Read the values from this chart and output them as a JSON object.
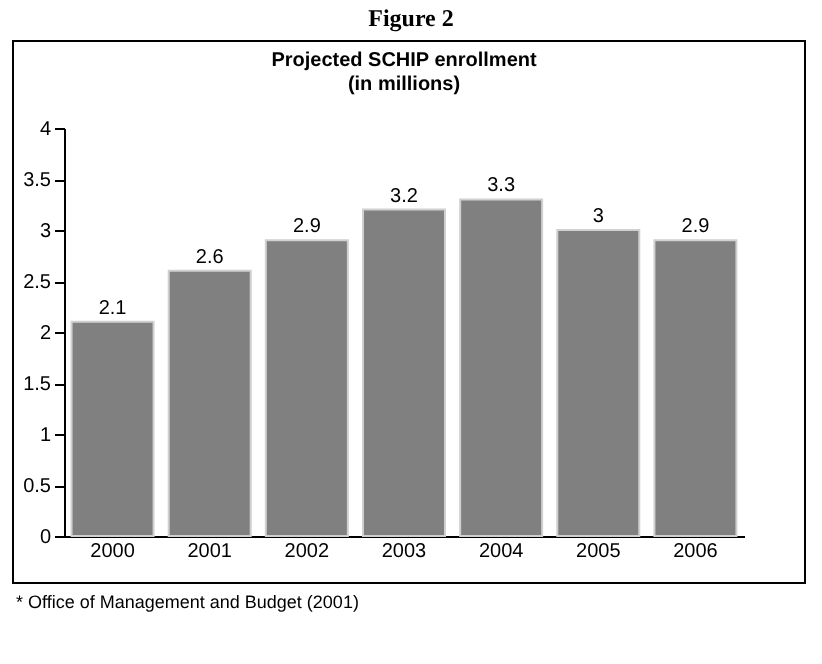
{
  "chart_data": {
    "type": "bar",
    "title": "Figure 2",
    "subtitle": [
      "Projected SCHIP enrollment",
      "(in millions)"
    ],
    "categories": [
      "2000",
      "2001",
      "2002",
      "2003",
      "2004",
      "2005",
      "2006"
    ],
    "values": [
      2.1,
      2.6,
      2.9,
      3.2,
      3.3,
      3,
      2.9
    ],
    "color": "#808080",
    "ylim": [
      0,
      4
    ],
    "yticks": [
      0,
      0.5,
      1,
      1.5,
      2,
      2.5,
      3,
      3.5,
      4
    ],
    "data_labels": true,
    "annotations": [
      "* Office of Management and Budget (2001)"
    ]
  }
}
